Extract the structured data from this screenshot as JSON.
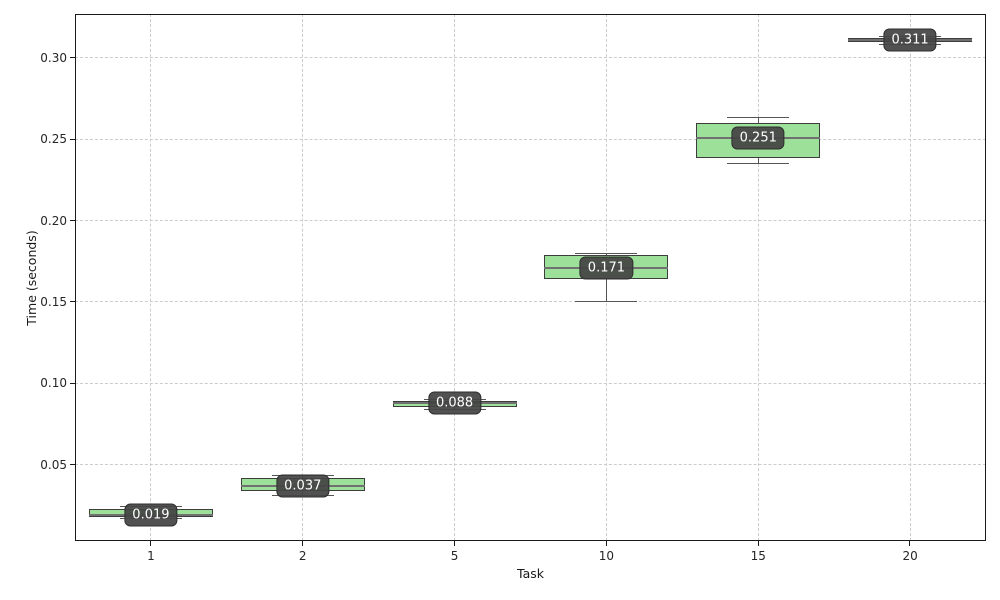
{
  "figure": {
    "background": "#ffffff"
  },
  "chart_data": {
    "type": "boxplot",
    "title": "",
    "xlabel": "Task",
    "ylabel": "Time (seconds)",
    "categories": [
      "1",
      "2",
      "5",
      "10",
      "15",
      "20"
    ],
    "ytick_values": [
      0.05,
      0.1,
      0.15,
      0.2,
      0.25,
      0.3
    ],
    "ytick_labels": [
      "0.05",
      "0.10",
      "0.15",
      "0.20",
      "0.25",
      "0.30"
    ],
    "ylim": [
      0.003,
      0.327
    ],
    "grid": "dashed, both axes",
    "legend": "none",
    "series": [
      {
        "category": "1",
        "median": 0.019,
        "q1": 0.018,
        "q3": 0.0225,
        "whisker_low": 0.017,
        "whisker_high": 0.024,
        "label": "0.019"
      },
      {
        "category": "2",
        "median": 0.037,
        "q1": 0.034,
        "q3": 0.0415,
        "whisker_low": 0.031,
        "whisker_high": 0.043,
        "label": "0.037"
      },
      {
        "category": "5",
        "median": 0.088,
        "q1": 0.0855,
        "q3": 0.089,
        "whisker_low": 0.084,
        "whisker_high": 0.09,
        "label": "0.088"
      },
      {
        "category": "10",
        "median": 0.171,
        "q1": 0.164,
        "q3": 0.179,
        "whisker_low": 0.15,
        "whisker_high": 0.18,
        "label": "0.171"
      },
      {
        "category": "15",
        "median": 0.251,
        "q1": 0.2385,
        "q3": 0.26,
        "whisker_low": 0.235,
        "whisker_high": 0.263,
        "label": "0.251"
      },
      {
        "category": "20",
        "median": 0.311,
        "q1": 0.3095,
        "q3": 0.312,
        "whisker_low": 0.308,
        "whisker_high": 0.313,
        "label": "0.311"
      }
    ],
    "colors": {
      "box_fill": "#9ce09a",
      "box_edge": "#3d3d3d",
      "median": "#707070",
      "whisker": "#555555",
      "grid": "#cccccc",
      "axis": "#1a1a1a",
      "annotation_bg": "#444444",
      "annotation_text": "#ffffff"
    }
  }
}
